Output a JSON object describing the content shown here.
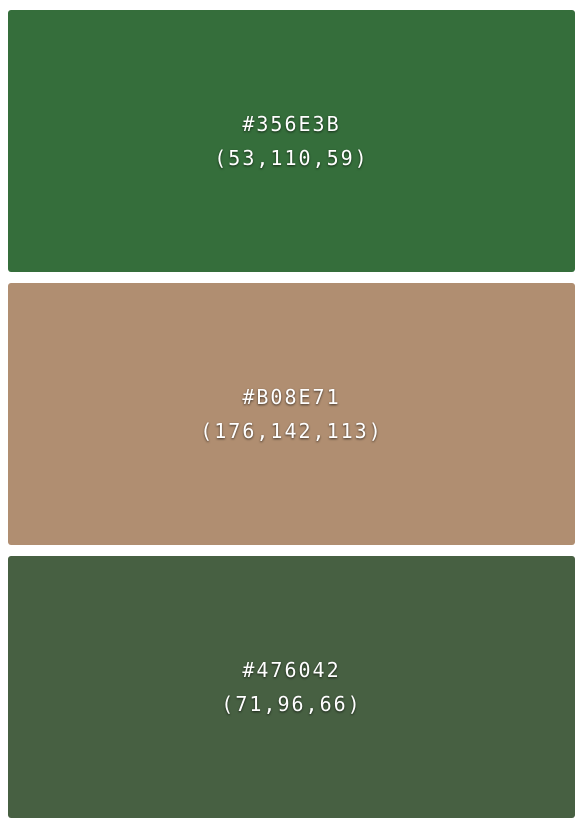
{
  "swatches": [
    {
      "hex": "#356E3B",
      "rgb": "(53,110,59)",
      "color": "#356E3B"
    },
    {
      "hex": "#B08E71",
      "rgb": "(176,142,113)",
      "color": "#B08E71"
    },
    {
      "hex": "#476042",
      "rgb": "(71,96,66)",
      "color": "#476042"
    }
  ]
}
